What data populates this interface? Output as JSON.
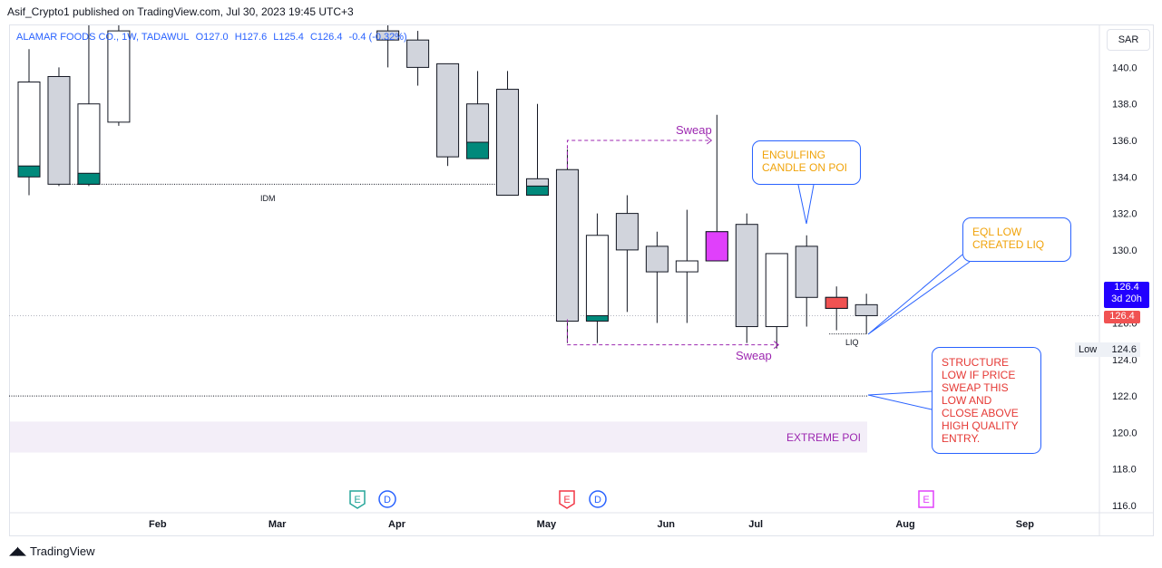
{
  "header": {
    "text": "Asif_Crypto1 published on TradingView.com, Jul 30, 2023 19:45 UTC+3"
  },
  "legend": {
    "symbol": "ALAMAR FOODS CO., 1W, TADAWUL",
    "open": "O127.0",
    "high": "H127.6",
    "low": "L125.4",
    "close": "C126.4",
    "change": "-0.4 (-0.32%)"
  },
  "currency": "SAR",
  "footer": {
    "brand": "TradingView"
  },
  "colors": {
    "bear_fill": "#d1d4dc",
    "bull_fill": "#ffffff",
    "candle_border": "#131722",
    "teal": "#00897b",
    "magenta": "#e040fb",
    "red": "#f05252",
    "blue": "#2962ff",
    "purple": "#9c27b0",
    "orange": "#f0a30a"
  },
  "chart_data": {
    "type": "candlestick",
    "title": "",
    "y_ticks": [
      "116.0",
      "118.0",
      "120.0",
      "122.0",
      "124.0",
      "126.0",
      "128.0",
      "130.0",
      "132.0",
      "134.0",
      "136.0",
      "138.0",
      "140.0"
    ],
    "ylim": [
      115.6,
      141.9
    ],
    "x_labels": [
      "Feb",
      "Mar",
      "Apr",
      "May",
      "Jun",
      "Jul",
      "Aug",
      "Sep"
    ],
    "x_label_weeks": [
      4.3,
      8.3,
      12.3,
      17.3,
      21.3,
      24.3,
      29.3,
      33.3
    ],
    "last_price": "126.4",
    "countdown": "3d 20h",
    "close_tag": "126.4",
    "low_label": "Low",
    "low_value": "124.6",
    "candles": [
      {
        "w": 0,
        "o": 134.5,
        "h": 141.0,
        "l": 133.0,
        "c": 139.2
      },
      {
        "w": 1,
        "o": 139.5,
        "h": 140.0,
        "l": 133.5,
        "c": 133.6
      },
      {
        "w": 2,
        "o": 133.6,
        "h": 143.0,
        "l": 133.5,
        "c": 138.0
      },
      {
        "w": 3,
        "o": 137.0,
        "h": 143.0,
        "l": 136.8,
        "c": 142.0
      },
      {
        "w": 12,
        "o": 142.0,
        "h": 143.0,
        "l": 140.0,
        "c": 141.5
      },
      {
        "w": 13,
        "o": 141.5,
        "h": 142.0,
        "l": 139.0,
        "c": 140.0
      },
      {
        "w": 14,
        "o": 140.2,
        "h": 140.2,
        "l": 134.6,
        "c": 135.1
      },
      {
        "w": 15,
        "o": 138.0,
        "h": 139.8,
        "l": 135.0,
        "c": 135.8
      },
      {
        "w": 16,
        "o": 138.8,
        "h": 139.8,
        "l": 133.0,
        "c": 133.0
      },
      {
        "w": 17,
        "o": 133.9,
        "h": 138.0,
        "l": 133.0,
        "c": 133.0
      },
      {
        "w": 18,
        "o": 134.4,
        "h": 135.5,
        "l": 124.9,
        "c": 126.1
      },
      {
        "w": 19,
        "o": 126.2,
        "h": 132.0,
        "l": 124.9,
        "c": 130.8
      },
      {
        "w": 20,
        "o": 132.0,
        "h": 133.0,
        "l": 126.6,
        "c": 130.0
      },
      {
        "w": 21,
        "o": 130.2,
        "h": 131.0,
        "l": 126.0,
        "c": 128.8
      },
      {
        "w": 22,
        "o": 128.8,
        "h": 132.2,
        "l": 126.0,
        "c": 129.4
      },
      {
        "w": 23,
        "o": 131.0,
        "h": 137.4,
        "l": 129.4,
        "c": 129.4
      },
      {
        "w": 24,
        "o": 131.4,
        "h": 132.0,
        "l": 124.9,
        "c": 125.8
      },
      {
        "w": 25,
        "o": 125.8,
        "h": 129.8,
        "l": 124.6,
        "c": 129.8
      },
      {
        "w": 26,
        "o": 130.2,
        "h": 130.8,
        "l": 125.8,
        "c": 127.4
      },
      {
        "w": 27,
        "o": 127.4,
        "h": 128.0,
        "l": 125.6,
        "c": 126.8
      },
      {
        "w": 28,
        "o": 127.0,
        "h": 127.6,
        "l": 125.4,
        "c": 126.4
      }
    ]
  },
  "annotations": {
    "idm": "IDM",
    "liq": "LIQ",
    "sweap_top": "Sweap",
    "sweap_bottom": "Sweap",
    "extreme_poi": "EXTREME POI",
    "callout_engulfing": "ENGULFING\nCANDLE ON POI",
    "callout_eql": "EQL LOW\nCREATED LIQ",
    "callout_structure": "STRUCTURE\nLOW IF PRICE\nSWEAP THIS\nLOW AND\nCLOSE ABOVE\nHIGH QUALITY\nENTRY.",
    "event_e": "E",
    "event_d": "D"
  }
}
